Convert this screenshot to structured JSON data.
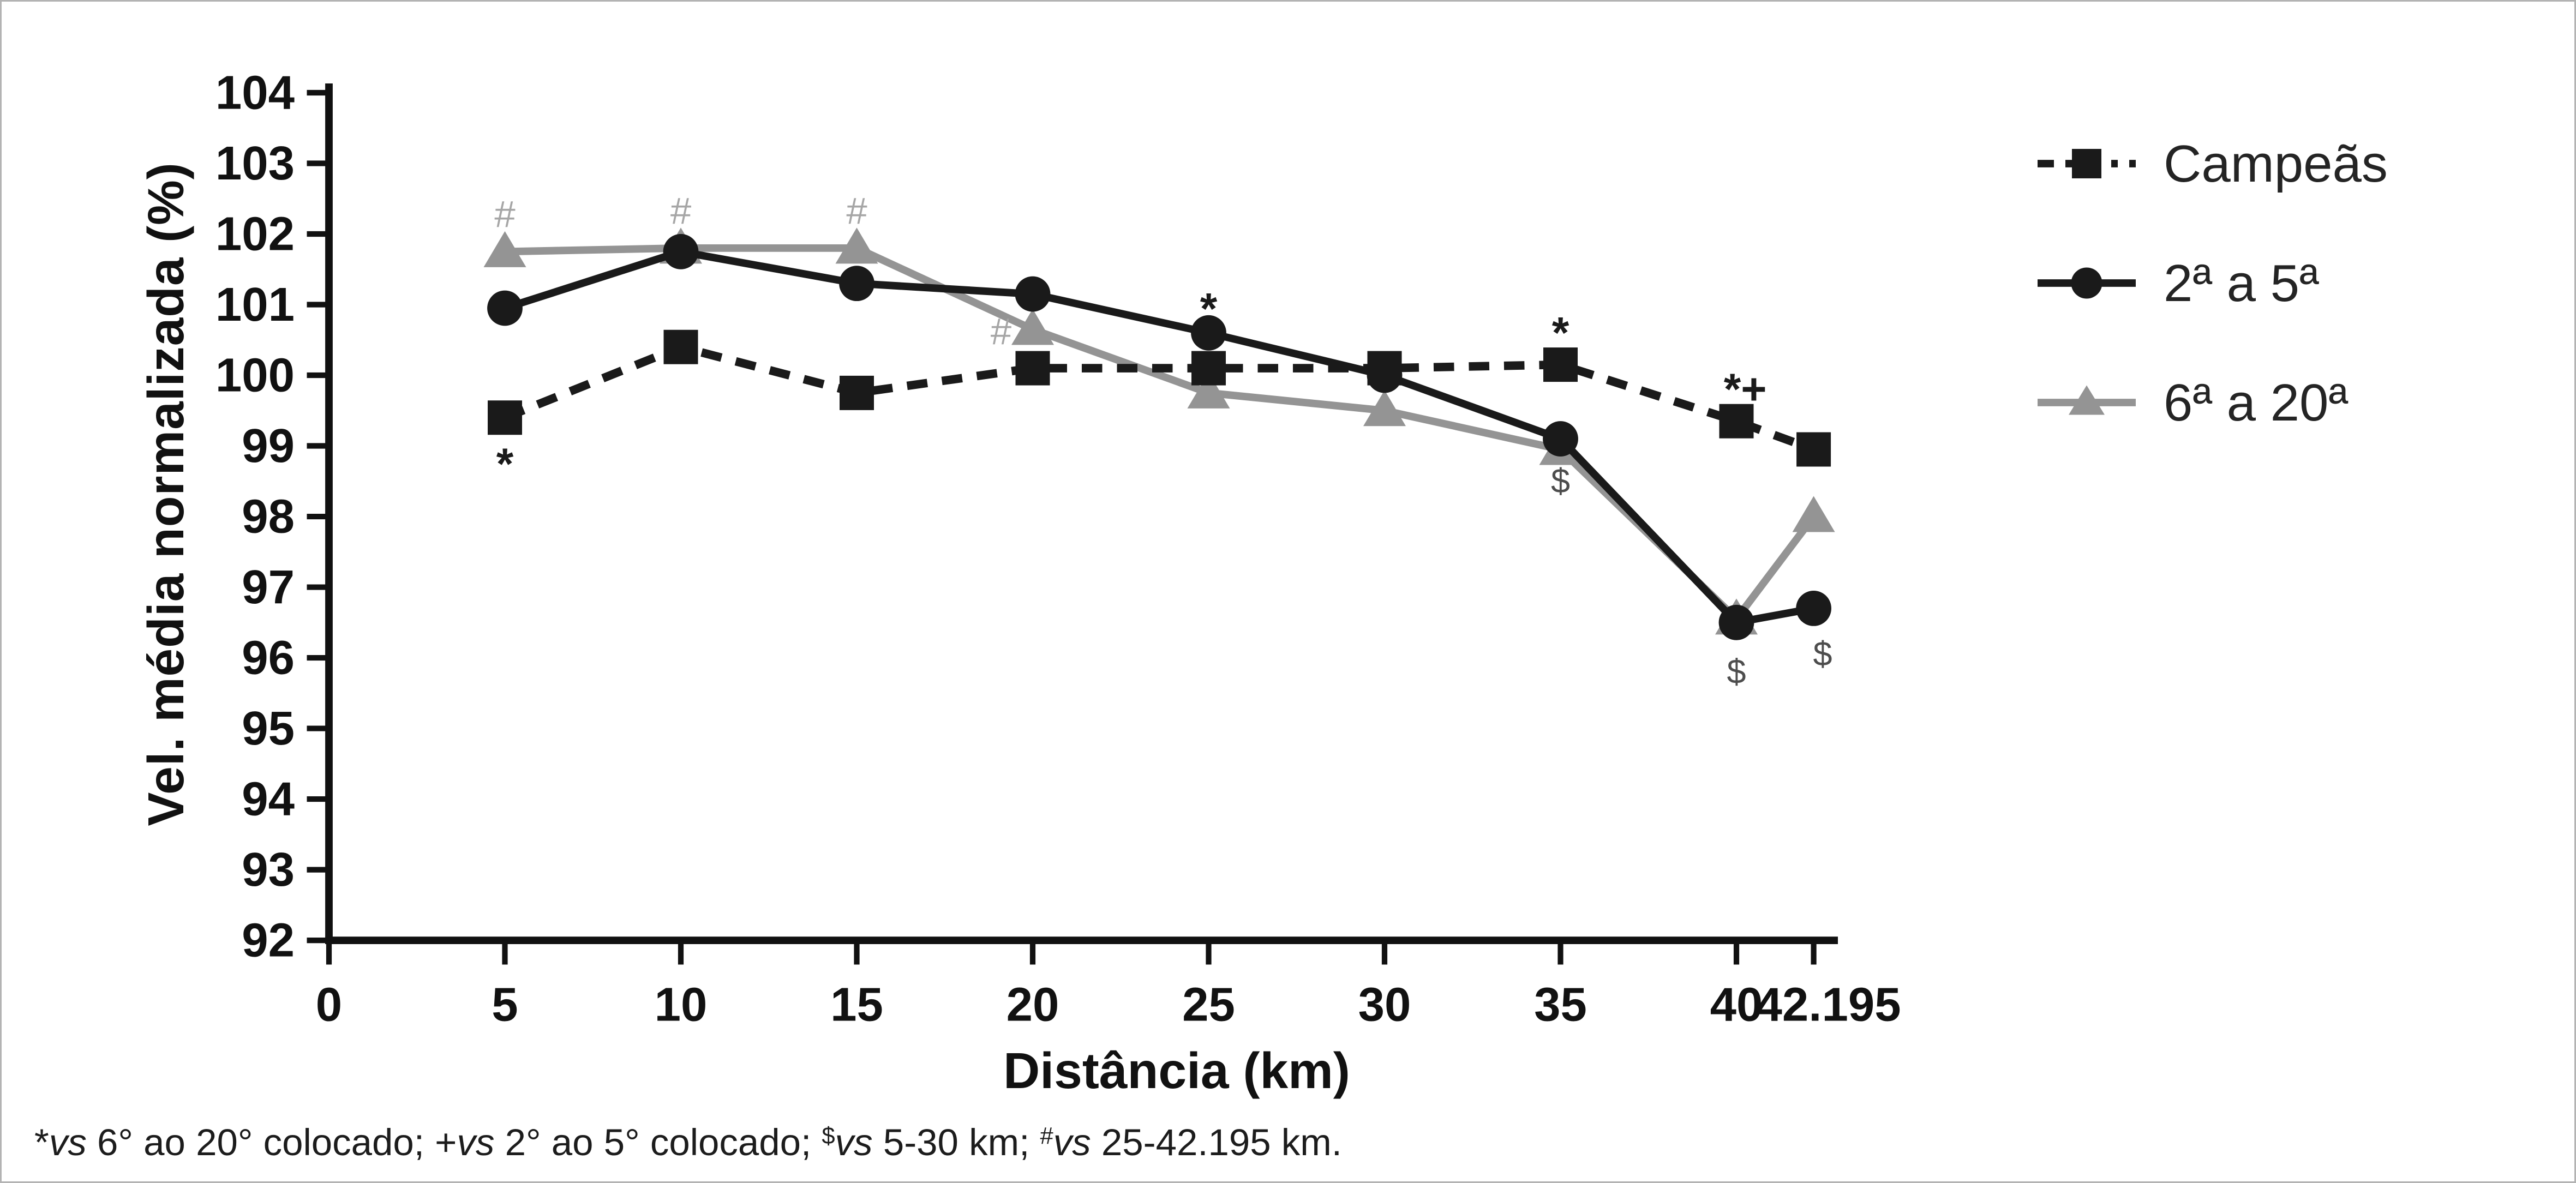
{
  "figure": {
    "background": "#ffffff",
    "border_color": "#b3b3b3",
    "text_color": "#111111"
  },
  "chart_data": {
    "type": "line",
    "title": "",
    "xlabel": "Distância (km)",
    "ylabel": "Vel. média normalizada (%)",
    "xlim": [
      0,
      43.5
    ],
    "ylim": [
      92,
      104
    ],
    "grid": false,
    "legend_position": "top-right",
    "x_ticks": [
      0,
      5,
      10,
      15,
      20,
      25,
      30,
      35,
      40,
      42.195
    ],
    "x_tick_labels": [
      "0",
      "5",
      "10",
      "15",
      "20",
      "25",
      "30",
      "35",
      "40",
      "42.195"
    ],
    "y_ticks": [
      92,
      93,
      94,
      95,
      96,
      97,
      98,
      99,
      100,
      101,
      102,
      103,
      104
    ],
    "x": [
      5,
      10,
      15,
      20,
      25,
      30,
      35,
      40,
      42.195
    ],
    "series": [
      {
        "name": "Campeãs",
        "marker": "square",
        "line": "dashed",
        "color": "#1a1a1a",
        "x": [
          5,
          10,
          15,
          20,
          25,
          30,
          35,
          40,
          42.195
        ],
        "values": [
          99.4,
          100.4,
          99.75,
          100.1,
          100.1,
          100.1,
          100.15,
          99.35,
          98.95
        ]
      },
      {
        "name": "2ª a 5ª",
        "marker": "circle",
        "line": "solid",
        "color": "#1a1a1a",
        "x": [
          5,
          10,
          15,
          20,
          25,
          30,
          35,
          40,
          42.195
        ],
        "values": [
          100.95,
          101.75,
          101.3,
          101.15,
          100.6,
          100.0,
          99.1,
          96.5,
          96.7
        ]
      },
      {
        "name": "6ª a 20ª",
        "marker": "triangle",
        "line": "solid",
        "color": "#949494",
        "x": [
          5,
          10,
          15,
          20,
          25,
          30,
          35,
          40,
          42.195
        ],
        "values": [
          101.75,
          101.8,
          101.8,
          100.65,
          99.75,
          99.5,
          98.95,
          96.55,
          98.0
        ]
      }
    ],
    "annotations": [
      {
        "text": "*",
        "x": 5,
        "y": 98.74,
        "color": "#1a1a1a",
        "bold": true,
        "size": 27
      },
      {
        "text": "#",
        "x": 5,
        "y": 102.28,
        "color": "#a6a6a6",
        "bold": false,
        "size": 23
      },
      {
        "text": "#",
        "x": 10,
        "y": 102.33,
        "color": "#a6a6a6",
        "bold": false,
        "size": 23
      },
      {
        "text": "#",
        "x": 15,
        "y": 102.33,
        "color": "#a6a6a6",
        "bold": false,
        "size": 23
      },
      {
        "text": "#",
        "x": 19.1,
        "y": 100.62,
        "color": "#a6a6a6",
        "bold": false,
        "size": 23
      },
      {
        "text": "*",
        "x": 25,
        "y": 100.94,
        "color": "#1a1a1a",
        "bold": true,
        "size": 27
      },
      {
        "text": "*",
        "x": 35,
        "y": 100.6,
        "color": "#1a1a1a",
        "bold": true,
        "size": 27
      },
      {
        "text": "*+",
        "x": 40.25,
        "y": 99.8,
        "color": "#1a1a1a",
        "bold": true,
        "size": 27
      },
      {
        "text": "$",
        "x": 35,
        "y": 98.5,
        "color": "#4d4d4d",
        "bold": false,
        "size": 21
      },
      {
        "text": "$",
        "x": 40,
        "y": 95.8,
        "color": "#4d4d4d",
        "bold": false,
        "size": 21
      },
      {
        "text": "$",
        "x": 42.45,
        "y": 96.05,
        "color": "#4d4d4d",
        "bold": false,
        "size": 21
      }
    ]
  },
  "footnote": {
    "segments": [
      {
        "t": "*"
      },
      {
        "t": "vs",
        "i": true
      },
      {
        "t": " 6° ao 20° colocado; +"
      },
      {
        "t": "vs",
        "i": true
      },
      {
        "t": " 2° ao 5° colocado; "
      },
      {
        "t": "$",
        "sup": true
      },
      {
        "t": "vs",
        "i": true
      },
      {
        "t": " 5-30 km; "
      },
      {
        "t": "#",
        "sup": true
      },
      {
        "t": "vs",
        "i": true
      },
      {
        "t": " 25-42.195 km."
      }
    ]
  }
}
